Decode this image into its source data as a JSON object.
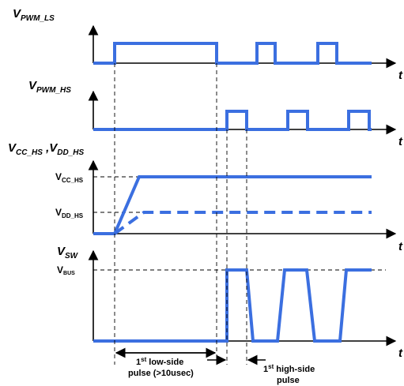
{
  "panels": {
    "pwm_ls": {
      "label": "V",
      "sub": "PWM_LS"
    },
    "pwm_hs": {
      "label": "V",
      "sub": "PWM_HS"
    },
    "supply": {
      "label1": "V",
      "sub1": "CC_HS",
      "sep": " ,",
      "label2": "V",
      "sub2": "DD_HS"
    },
    "sw": {
      "label": "V",
      "sub": "SW"
    }
  },
  "time_label": "t",
  "levels": {
    "vcc": {
      "main": "V",
      "sub": "CC_HS"
    },
    "vdd": {
      "main": "V",
      "sub": "DD_HS"
    },
    "vbus": {
      "main": "V",
      "sub": "BUS"
    }
  },
  "annotations": {
    "low_side": {
      "sup": "st",
      "num": "1",
      "line1": " low-side",
      "line2": "pulse (>10usec)"
    },
    "high_side": {
      "sup": "st",
      "num": "1",
      "line1": " high-side",
      "line2": "pulse"
    }
  },
  "colors": {
    "signal": "#3b6fe0",
    "axis": "#000000"
  }
}
